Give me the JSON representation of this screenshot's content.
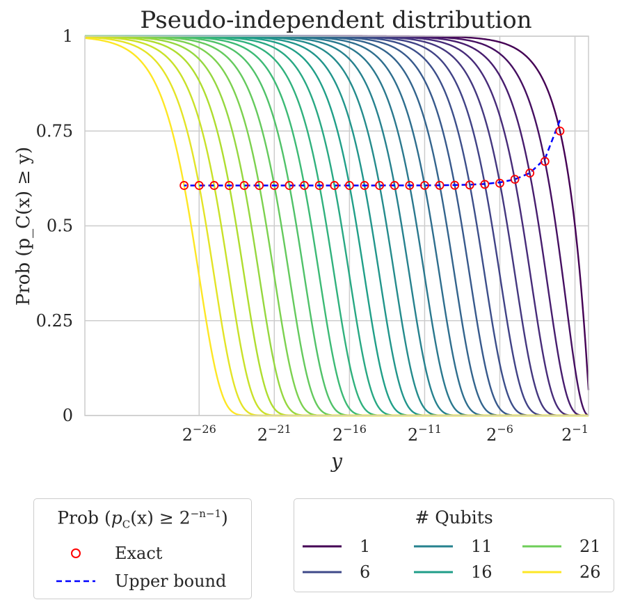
{
  "chart_data": {
    "type": "line",
    "title": "Pseudo-independent distribution",
    "xlabel": "y",
    "ylabel": "Prob (p_C(x) ≥ y)",
    "x_scale": "log2",
    "xlim_log2": [
      -33.6,
      -0.1
    ],
    "ylim": [
      0,
      1
    ],
    "x_ticks": [
      {
        "exp": -26,
        "label": "2",
        "sup": "−26"
      },
      {
        "exp": -21,
        "label": "2",
        "sup": "−21"
      },
      {
        "exp": -16,
        "label": "2",
        "sup": "−16"
      },
      {
        "exp": -11,
        "label": "2",
        "sup": "−11"
      },
      {
        "exp": -6,
        "label": "2",
        "sup": "−6"
      },
      {
        "exp": -1,
        "label": "2",
        "sup": "−1"
      }
    ],
    "y_ticks": [
      {
        "value": 0,
        "label": "0"
      },
      {
        "value": 0.25,
        "label": "0.25"
      },
      {
        "value": 0.5,
        "label": "0.5"
      },
      {
        "value": 0.75,
        "label": "0.75"
      },
      {
        "value": 1,
        "label": "1"
      }
    ],
    "colormap": [
      "#440154",
      "#482878",
      "#3e4989",
      "#31688e",
      "#26828e",
      "#1f9e89",
      "#35b779",
      "#6ece58",
      "#b5de2b",
      "#fde725"
    ],
    "qubits": [
      1,
      2,
      3,
      4,
      5,
      6,
      7,
      8,
      9,
      10,
      11,
      12,
      13,
      14,
      15,
      16,
      17,
      18,
      19,
      20,
      21,
      22,
      23,
      24,
      25,
      26
    ],
    "curve_model": "Prob = (1 - y)^(2^n - 1)",
    "exact_points": {
      "name": "Exact",
      "color": "#ff0000",
      "x_exp": [
        -2,
        -3,
        -4,
        -5,
        -6,
        -7,
        -8,
        -9,
        -10,
        -11,
        -12,
        -13,
        -14,
        -15,
        -16,
        -17,
        -18,
        -19,
        -20,
        -21,
        -22,
        -23,
        -24,
        -25,
        -26,
        -27
      ],
      "values": [
        0.75,
        0.6699,
        0.6392,
        0.6227,
        0.6124,
        0.6093,
        0.6077,
        0.607,
        0.6068,
        0.6066,
        0.6066,
        0.6065,
        0.6065,
        0.6065,
        0.6065,
        0.6065,
        0.6065,
        0.6065,
        0.6065,
        0.6065,
        0.6065,
        0.6065,
        0.6065,
        0.6065,
        0.6065,
        0.6065
      ]
    },
    "upper_bound": {
      "name": "Upper bound",
      "color": "#0000ff",
      "x_exp": [
        -2,
        -3,
        -4,
        -5,
        -6,
        -7,
        -8,
        -9,
        -10,
        -11,
        -12,
        -13,
        -14,
        -15,
        -16,
        -17,
        -18,
        -19,
        -20,
        -21,
        -22,
        -23,
        -24,
        -25,
        -26,
        -27
      ],
      "values": [
        0.7788,
        0.6766,
        0.6394,
        0.6225,
        0.6145,
        0.6104,
        0.6085,
        0.6075,
        0.607,
        0.6067,
        0.6066,
        0.6066,
        0.6065,
        0.6065,
        0.6065,
        0.6065,
        0.6065,
        0.6065,
        0.6065,
        0.6065,
        0.6065,
        0.6065,
        0.6065,
        0.6065,
        0.6065,
        0.6065
      ]
    }
  },
  "legend_prob": {
    "title_prefix": "Prob ",
    "title_expr": "p",
    "title_sub": "C",
    "title_mid": "(x) ≥ 2",
    "title_sup": "−n−1",
    "items": [
      {
        "label": "Exact",
        "color": "#ff0000"
      },
      {
        "label": "Upper bound",
        "color": "#0000ff"
      }
    ]
  },
  "legend_qubits": {
    "title": "# Qubits",
    "items": [
      {
        "label": "1",
        "color": "#440154"
      },
      {
        "label": "6",
        "color": "#3e4989"
      },
      {
        "label": "11",
        "color": "#26828e"
      },
      {
        "label": "16",
        "color": "#1f9e89"
      },
      {
        "label": "21",
        "color": "#6ece58"
      },
      {
        "label": "26",
        "color": "#fde725"
      }
    ]
  }
}
